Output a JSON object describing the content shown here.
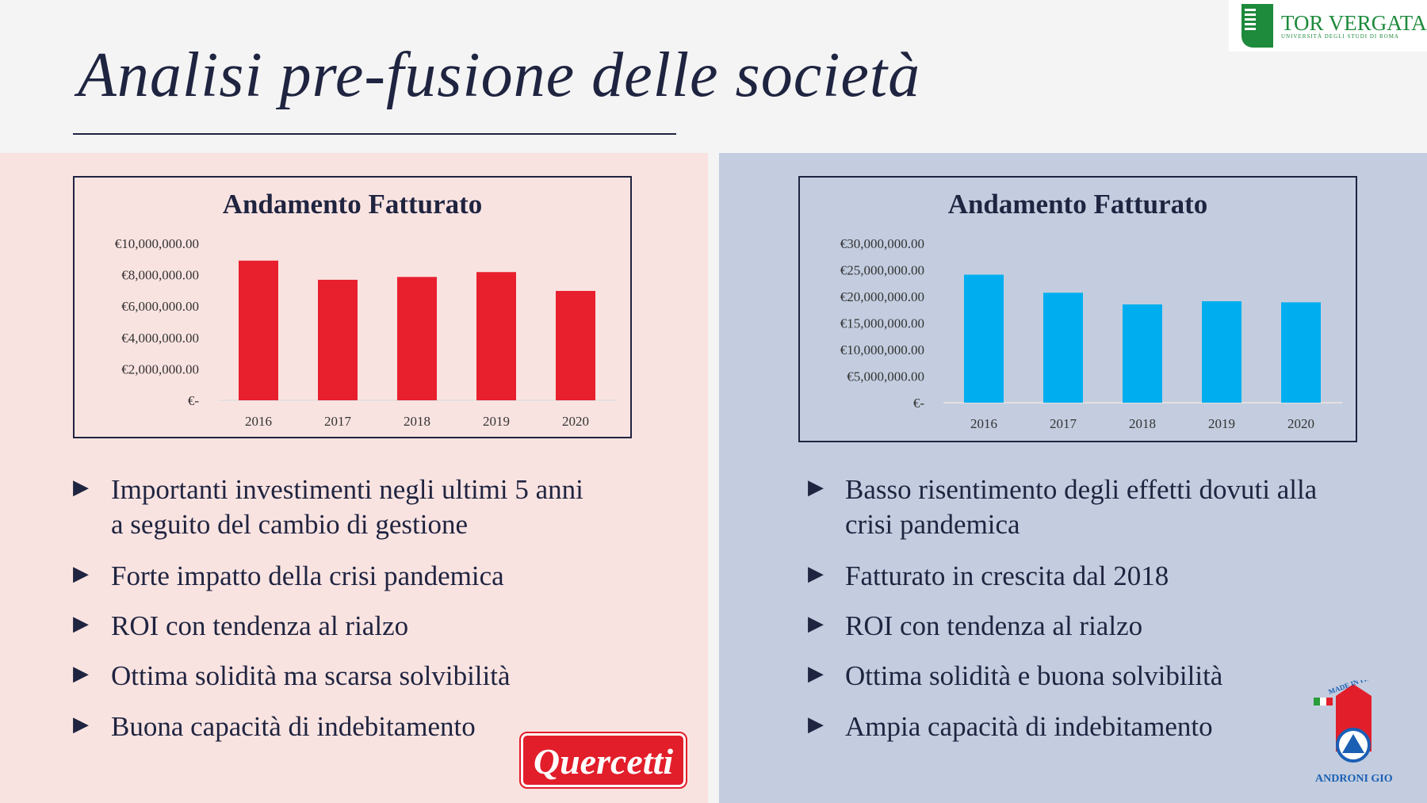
{
  "title": "Analisi pre-fusione delle società",
  "logos": {
    "university": "TOR VERGATA",
    "university_sub": "UNIVERSITÀ DEGLI STUDI DI ROMA",
    "left_company": "Quercetti",
    "right_company": "ANDRONI GIOCATTOLI",
    "right_badge": "MADE IN ITALY"
  },
  "colors": {
    "left_bar": "#e8202e",
    "right_bar": "#00aeef",
    "left_panel": "#f9e3e1",
    "right_panel": "#c3cddf"
  },
  "left": {
    "bullets": [
      "Importanti investimenti negli ultimi 5 anni",
      "a seguito del cambio di gestione",
      "Forte impatto della crisi pandemica",
      "ROI con tendenza al rialzo",
      "Ottima solidità ma scarsa solvibilità",
      "Buona capacità di indebitamento"
    ]
  },
  "right": {
    "bullets": [
      "Basso risentimento degli effetti dovuti alla",
      "crisi pandemica",
      "Fatturato in crescita dal 2018",
      "ROI con tendenza al rialzo",
      "Ottima solidità e buona solvibilità",
      "Ampia capacità di indebitamento"
    ]
  },
  "chart_data": [
    {
      "type": "bar",
      "title": "Andamento Fatturato",
      "categories": [
        "2016",
        "2017",
        "2018",
        "2019",
        "2020"
      ],
      "values": [
        8900000,
        7680000,
        7860000,
        8170000,
        6970000
      ],
      "ylim": [
        0,
        10000000
      ],
      "yticks": [
        "€-",
        "€2,000,000.00",
        "€4,000,000.00",
        "€6,000,000.00",
        "€8,000,000.00",
        "€10,000,000.00"
      ],
      "grid": false,
      "color": "#e8202e"
    },
    {
      "type": "bar",
      "title": "Andamento Fatturato",
      "categories": [
        "2016",
        "2017",
        "2018",
        "2019",
        "2020"
      ],
      "values": [
        24100000,
        20700000,
        18500000,
        19100000,
        18900000
      ],
      "ylim": [
        0,
        30000000
      ],
      "yticks": [
        "€-",
        "€5,000,000.00",
        "€10,000,000.00",
        "€15,000,000.00",
        "€20,000,000.00",
        "€25,000,000.00",
        "€30,000,000.00"
      ],
      "grid": false,
      "color": "#00aeef"
    }
  ]
}
